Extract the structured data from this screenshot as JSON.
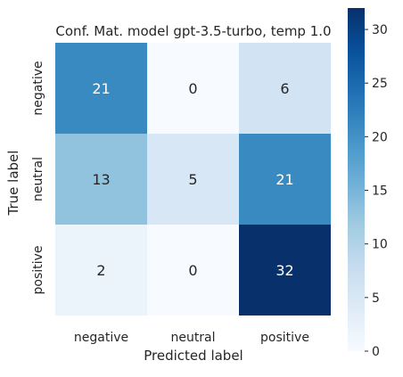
{
  "chart_data": {
    "type": "heatmap",
    "title": "Conf. Mat. model gpt-3.5-turbo, temp 1.0",
    "xlabel": "Predicted label",
    "ylabel": "True label",
    "x_categories": [
      "negative",
      "neutral",
      "positive"
    ],
    "y_categories": [
      "negative",
      "neutral",
      "positive"
    ],
    "values": [
      [
        21,
        0,
        6
      ],
      [
        13,
        5,
        21
      ],
      [
        2,
        0,
        32
      ]
    ],
    "colorbar": {
      "min": 0,
      "max": 32,
      "ticks": [
        0,
        5,
        10,
        15,
        20,
        25,
        30
      ],
      "colormap": "Blues"
    },
    "grid": false
  }
}
